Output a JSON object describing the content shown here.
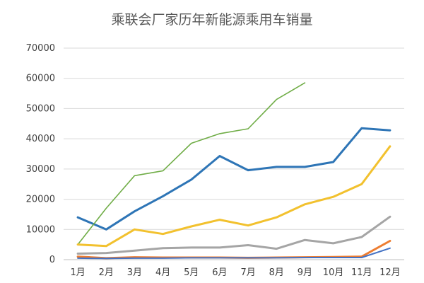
{
  "chart_data": {
    "type": "line",
    "title": "乘联会厂家历年新能源乘用车销量",
    "xlabel": "",
    "ylabel": "",
    "categories": [
      "1月",
      "2月",
      "3月",
      "4月",
      "5月",
      "6月",
      "7月",
      "8月",
      "9月",
      "10月",
      "11月",
      "12月"
    ],
    "ylim": [
      0,
      70000
    ],
    "yticks": [
      0,
      10000,
      20000,
      30000,
      40000,
      50000,
      60000,
      70000
    ],
    "ytick_labels": [
      "0",
      "10000",
      "20000",
      "30000",
      "40000",
      "50000",
      "60000",
      "70000"
    ],
    "grid": true,
    "legend": "none",
    "series": [
      {
        "color": "#2e75b6",
        "width": 3,
        "values": [
          14000,
          10000,
          16000,
          21000,
          26500,
          34300,
          29600,
          30700,
          30700,
          32300,
          43500,
          42800
        ]
      },
      {
        "color": "#70ad47",
        "width": 1.6,
        "values": [
          5000,
          17000,
          27800,
          29400,
          38500,
          41700,
          43300,
          53000,
          58500,
          null,
          null,
          null
        ]
      },
      {
        "color": "#f2c12e",
        "width": 3,
        "values": [
          5000,
          4500,
          10000,
          8500,
          11000,
          13200,
          11300,
          14000,
          18300,
          20800,
          25000,
          37500
        ]
      },
      {
        "color": "#a5a5a5",
        "width": 3,
        "values": [
          2000,
          2200,
          3000,
          3800,
          4000,
          4000,
          4800,
          3600,
          6500,
          5400,
          7500,
          14200
        ]
      },
      {
        "color": "#ed7d31",
        "width": 3,
        "values": [
          1000,
          500,
          800,
          700,
          700,
          700,
          600,
          700,
          800,
          900,
          1000,
          6200
        ]
      },
      {
        "color": "#4472c4",
        "width": 2,
        "values": [
          500,
          400,
          500,
          500,
          600,
          600,
          600,
          600,
          700,
          700,
          700,
          3800
        ]
      }
    ]
  }
}
